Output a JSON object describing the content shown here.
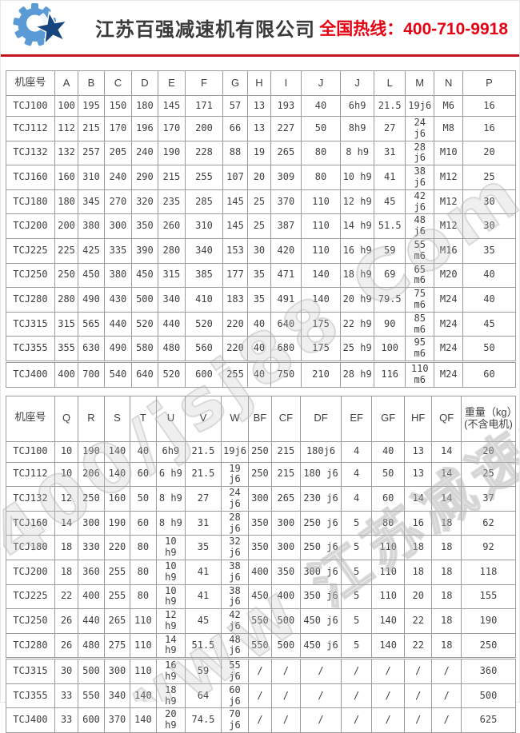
{
  "header": {
    "company_name": "江苏百强减速机有限公司",
    "hotline_label": "全国热线：",
    "hotline_number": "400-710-9918",
    "accent_red": "#e60012",
    "logo_gear_color": "#5b9bd5",
    "logo_star_color": "#17457e"
  },
  "watermark": {
    "line1": "400/jsj88 Com",
    "line2": "WWW 江苏减速机 9965"
  },
  "tables": [
    {
      "name": "frame-dimensions-table-1",
      "columns": [
        "机座号",
        "A",
        "B",
        "C",
        "D",
        "E",
        "F",
        "G",
        "H",
        "I",
        "J",
        "J",
        "L",
        "M",
        "N",
        "P"
      ],
      "split_after_col": 10,
      "split_before_row": 11,
      "rows": [
        [
          "TCJ100",
          "100",
          "195",
          "150",
          "180",
          "145",
          "171",
          "57",
          "13",
          "193",
          "40",
          "6h9",
          "21.5",
          "19j6",
          "M6",
          "16"
        ],
        [
          "TCJ112",
          "112",
          "215",
          "170",
          "196",
          "170",
          "200",
          "66",
          "13",
          "227",
          "50",
          "8h9",
          "27",
          "24 j6",
          "M8",
          "16"
        ],
        [
          "TCJ132",
          "132",
          "257",
          "205",
          "240",
          "190",
          "228",
          "88",
          "19",
          "265",
          "80",
          "8 h9",
          "31",
          "28 j6",
          "M10",
          "20"
        ],
        [
          "TCJ160",
          "160",
          "310",
          "240",
          "290",
          "215",
          "255",
          "107",
          "20",
          "309",
          "80",
          "10 h9",
          "41",
          "38 j6",
          "M12",
          "25"
        ],
        [
          "TCJ180",
          "180",
          "345",
          "270",
          "320",
          "235",
          "285",
          "145",
          "25",
          "370",
          "110",
          "12 h9",
          "45",
          "42 j6",
          "M12",
          "30"
        ],
        [
          "TCJ200",
          "200",
          "380",
          "300",
          "350",
          "260",
          "310",
          "145",
          "25",
          "387",
          "110",
          "14 h9",
          "51.5",
          "48 j6",
          "M12",
          "30"
        ],
        [
          "TCJ225",
          "225",
          "425",
          "335",
          "390",
          "280",
          "340",
          "153",
          "30",
          "420",
          "110",
          "16 h9",
          "59",
          "55 m6",
          "M16",
          "35"
        ],
        [
          "TCJ250",
          "250",
          "450",
          "380",
          "450",
          "315",
          "385",
          "177",
          "35",
          "471",
          "140",
          "18 h9",
          "69",
          "65 m6",
          "M20",
          "40"
        ],
        [
          "TCJ280",
          "280",
          "490",
          "430",
          "500",
          "340",
          "410",
          "183",
          "35",
          "491",
          "140",
          "20 h9",
          "79.5",
          "75 m6",
          "M24",
          "40"
        ],
        [
          "TCJ315",
          "315",
          "565",
          "440",
          "520",
          "440",
          "520",
          "220",
          "40",
          "640",
          "175",
          "22 h9",
          "90",
          "85 m6",
          "M24",
          "45"
        ],
        [
          "TCJ355",
          "355",
          "630",
          "490",
          "580",
          "480",
          "560",
          "220",
          "40",
          "680",
          "175",
          "25 h9",
          "100",
          "95 m6",
          "M24",
          "50"
        ],
        [
          "TCJ400",
          "400",
          "700",
          "540",
          "640",
          "520",
          "600",
          "255",
          "40",
          "750",
          "210",
          "28 h9",
          "116",
          "110 m6",
          "M24",
          "60"
        ]
      ]
    },
    {
      "name": "frame-dimensions-table-2",
      "columns": [
        "机座号",
        "Q",
        "R",
        "S",
        "T",
        "U",
        "V",
        "W",
        "BF",
        "CF",
        "DF",
        "EF",
        "GF",
        "HF",
        "QF",
        "重量（kg）(不含电机)"
      ],
      "split_after_col": 10,
      "split_before_row": 9,
      "rows": [
        [
          "TCJ100",
          "10",
          "190",
          "140",
          "40",
          "6h9",
          "21.5",
          "19j6",
          "250",
          "215",
          "180j6",
          "4",
          "40",
          "13",
          "14",
          "20"
        ],
        [
          "TCJ112",
          "10",
          "206",
          "140",
          "60",
          "6 h9",
          "21.5",
          "19 j6",
          "250",
          "215",
          "180 j6",
          "4",
          "50",
          "13",
          "14",
          "25"
        ],
        [
          "TCJ132",
          "12",
          "250",
          "160",
          "50",
          "8 h9",
          "27",
          "24 j6",
          "300",
          "265",
          "230 j6",
          "4",
          "60",
          "14",
          "14",
          "37"
        ],
        [
          "TCJ160",
          "14",
          "300",
          "190",
          "60",
          "8 h9",
          "31",
          "28 j6",
          "350",
          "300",
          "250 j6",
          "5",
          "80",
          "16",
          "18",
          "62"
        ],
        [
          "TCJ180",
          "18",
          "330",
          "220",
          "80",
          "10 h9",
          "35",
          "32 j6",
          "350",
          "300",
          "250 j6",
          "5",
          "110",
          "18",
          "18",
          "92"
        ],
        [
          "TCJ200",
          "18",
          "360",
          "255",
          "80",
          "10 h9",
          "41",
          "38 j6",
          "400",
          "350",
          "300 j6",
          "5",
          "110",
          "18",
          "18",
          "118"
        ],
        [
          "TCJ225",
          "22",
          "400",
          "255",
          "80",
          "10 h9",
          "41",
          "38 j6",
          "450",
          "400",
          "350 j6",
          "5",
          "110",
          "20",
          "18",
          "155"
        ],
        [
          "TCJ250",
          "26",
          "440",
          "265",
          "110",
          "12 h9",
          "45",
          "42 j6",
          "550",
          "500",
          "450 j6",
          "5",
          "140",
          "22",
          "18",
          "190"
        ],
        [
          "TCJ280",
          "26",
          "480",
          "275",
          "110",
          "14 h9",
          "51.5",
          "48 j6",
          "550",
          "500",
          "450 j6",
          "5",
          "140",
          "22",
          "18",
          "250"
        ],
        [
          "TCJ315",
          "30",
          "500",
          "300",
          "110",
          "16 h9",
          "59",
          "55 j6",
          "/",
          "/",
          "/",
          "/",
          "/",
          "/",
          "/",
          "360"
        ],
        [
          "TCJ355",
          "33",
          "550",
          "340",
          "140",
          "18 h9",
          "64",
          "60 j6",
          "/",
          "/",
          "/",
          "/",
          "/",
          "/",
          "/",
          "500"
        ],
        [
          "TCJ400",
          "33",
          "600",
          "370",
          "140",
          "20 h9",
          "74.5",
          "70 j6",
          "/",
          "/",
          "/",
          "/",
          "/",
          "/",
          "/",
          "625"
        ]
      ]
    }
  ]
}
